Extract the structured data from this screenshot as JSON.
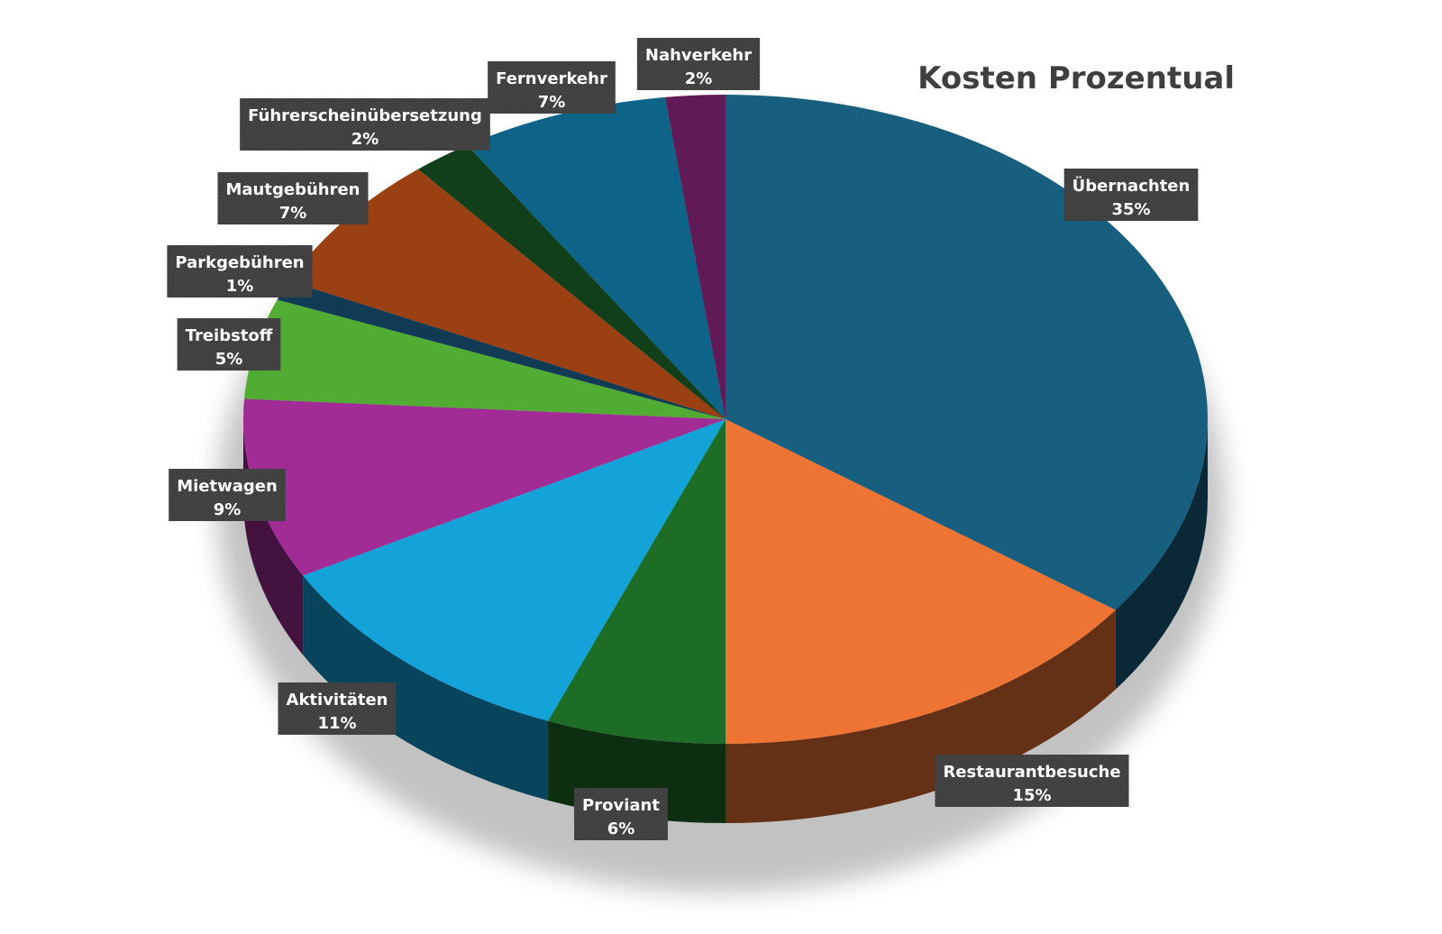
{
  "chart_data": {
    "type": "pie",
    "title": "Kosten Prozentual",
    "slices": [
      {
        "label": "Übernachten",
        "value": 35,
        "value_label": "35%",
        "color": "#185f7f"
      },
      {
        "label": "Restaurantbesuche",
        "value": 15,
        "value_label": "15%",
        "color": "#ee7434"
      },
      {
        "label": "Proviant",
        "value": 6,
        "value_label": "6%",
        "color": "#1e6d27"
      },
      {
        "label": "Aktivitäten",
        "value": 11,
        "value_label": "11%",
        "color": "#13a3d8"
      },
      {
        "label": "Mietwagen",
        "value": 9,
        "value_label": "9%",
        "color": "#a22c95"
      },
      {
        "label": "Treibstoff",
        "value": 5,
        "value_label": "5%",
        "color": "#51ac33"
      },
      {
        "label": "Parkgebühren",
        "value": 1,
        "value_label": "1%",
        "color": "#113b54"
      },
      {
        "label": "Mautgebühren",
        "value": 7,
        "value_label": "7%",
        "color": "#9a4012"
      },
      {
        "label": "Führerscheinübersetzung",
        "value": 2,
        "value_label": "2%",
        "color": "#113f19"
      },
      {
        "label": "Fernverkehr",
        "value": 7,
        "value_label": "7%",
        "color": "#0d6388"
      },
      {
        "label": "Nahverkehr",
        "value": 2,
        "value_label": "2%",
        "color": "#601a56"
      }
    ]
  }
}
